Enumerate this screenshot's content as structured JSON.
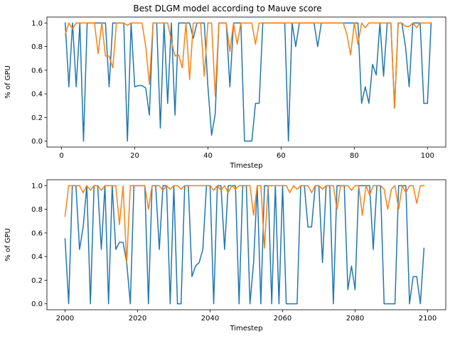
{
  "figure": {
    "title": "Best DLGM model according to Mauve score"
  },
  "chart_data": [
    {
      "type": "line",
      "title": "",
      "xlabel": "Timestep",
      "ylabel": "% of GPU",
      "xlim": [
        -4,
        105
      ],
      "ylim": [
        -0.05,
        1.05
      ],
      "xticks": [
        0,
        20,
        40,
        60,
        80,
        100
      ],
      "yticks": [
        0.0,
        0.2,
        0.4,
        0.6,
        0.8,
        1.0
      ],
      "x_start": 1,
      "grid": false,
      "legend": "none",
      "series": [
        {
          "color": "#1f77b4",
          "values": [
            1.0,
            0.46,
            1.0,
            0.46,
            1.0,
            0.0,
            1.0,
            1.0,
            1.0,
            1.0,
            1.0,
            1.0,
            0.46,
            1.0,
            1.0,
            1.0,
            1.0,
            0.0,
            1.0,
            0.46,
            0.47,
            0.47,
            0.45,
            0.22,
            1.0,
            1.0,
            0.11,
            1.0,
            0.32,
            1.0,
            0.22,
            1.0,
            1.0,
            1.0,
            1.0,
            0.87,
            1.0,
            1.0,
            1.0,
            0.46,
            0.05,
            0.23,
            1.0,
            1.0,
            1.0,
            0.46,
            1.0,
            1.0,
            1.0,
            0.0,
            0.0,
            0.0,
            0.32,
            0.32,
            1.0,
            1.0,
            1.0,
            1.0,
            1.0,
            1.0,
            1.0,
            0.0,
            1.0,
            0.8,
            1.0,
            1.0,
            1.0,
            1.0,
            1.0,
            0.8,
            1.0,
            1.0,
            1.0,
            1.0,
            1.0,
            1.0,
            1.0,
            1.0,
            1.0,
            1.0,
            1.0,
            0.32,
            0.46,
            0.32,
            0.65,
            0.56,
            1.0,
            0.55,
            1.0,
            1.0,
            0.28,
            1.0,
            1.0,
            0.8,
            0.46,
            1.0,
            1.0,
            1.0,
            0.32,
            0.32,
            1.0
          ]
        },
        {
          "color": "#ff7f0e",
          "values": [
            0.9,
            1.0,
            0.95,
            1.0,
            1.0,
            1.0,
            1.0,
            1.0,
            1.0,
            0.74,
            1.0,
            0.72,
            0.72,
            0.62,
            1.0,
            1.0,
            1.0,
            0.98,
            1.0,
            1.0,
            1.0,
            1.0,
            0.8,
            0.48,
            1.0,
            1.0,
            1.0,
            1.0,
            1.0,
            0.85,
            0.72,
            0.73,
            0.62,
            1.0,
            0.52,
            1.0,
            1.0,
            1.0,
            0.55,
            1.0,
            1.0,
            0.38,
            1.0,
            1.0,
            1.0,
            0.76,
            1.0,
            0.82,
            1.0,
            1.0,
            1.0,
            1.0,
            0.82,
            1.0,
            1.0,
            1.0,
            1.0,
            1.0,
            1.0,
            1.0,
            1.0,
            1.0,
            1.0,
            1.0,
            1.0,
            1.0,
            1.0,
            1.0,
            1.0,
            1.0,
            1.0,
            1.0,
            1.0,
            1.0,
            1.0,
            1.0,
            1.0,
            0.9,
            0.73,
            1.0,
            0.82,
            1.0,
            0.96,
            1.0,
            1.0,
            1.0,
            1.0,
            1.0,
            1.0,
            1.0,
            0.28,
            1.0,
            1.0,
            0.97,
            0.97,
            1.0,
            0.96,
            1.0,
            1.0,
            1.0,
            1.0
          ]
        }
      ]
    },
    {
      "type": "line",
      "title": "",
      "xlabel": "Timestep",
      "ylabel": "% of GPU",
      "xlim": [
        1995,
        2105
      ],
      "ylim": [
        -0.05,
        1.05
      ],
      "xticks": [
        2000,
        2020,
        2040,
        2060,
        2080,
        2100
      ],
      "yticks": [
        0.0,
        0.2,
        0.4,
        0.6,
        0.8,
        1.0
      ],
      "x_start": 2000,
      "grid": false,
      "legend": "none",
      "series": [
        {
          "color": "#1f77b4",
          "values": [
            0.55,
            0.0,
            1.0,
            1.0,
            0.46,
            0.65,
            1.0,
            0.0,
            1.0,
            1.0,
            0.46,
            1.0,
            0.0,
            1.0,
            0.46,
            0.52,
            0.52,
            0.35,
            0.0,
            1.0,
            1.0,
            1.0,
            1.0,
            0.0,
            1.0,
            1.0,
            0.46,
            1.0,
            1.0,
            0.0,
            1.0,
            0.0,
            0.0,
            1.0,
            1.0,
            0.23,
            0.32,
            0.35,
            0.46,
            1.0,
            1.0,
            0.0,
            1.0,
            1.0,
            0.46,
            1.0,
            1.0,
            1.0,
            0.0,
            1.0,
            1.0,
            0.0,
            0.35,
            1.0,
            0.0,
            1.0,
            1.0,
            0.0,
            1.0,
            0.0,
            1.0,
            0.0,
            0.0,
            0.0,
            0.0,
            1.0,
            1.0,
            0.65,
            0.65,
            1.0,
            1.0,
            0.35,
            1.0,
            1.0,
            0.0,
            1.0,
            1.0,
            1.0,
            0.12,
            0.32,
            0.12,
            1.0,
            1.0,
            1.0,
            1.0,
            0.46,
            1.0,
            1.0,
            0.0,
            0.0,
            0.0,
            0.0,
            1.0,
            1.0,
            1.0,
            0.0,
            0.23,
            0.23,
            0.0,
            0.47
          ]
        },
        {
          "color": "#ff7f0e",
          "values": [
            0.74,
            1.0,
            1.0,
            1.0,
            1.0,
            0.94,
            1.0,
            0.96,
            1.0,
            1.0,
            0.96,
            1.0,
            1.0,
            1.0,
            1.0,
            0.67,
            1.0,
            0.35,
            1.0,
            1.0,
            1.0,
            1.0,
            1.0,
            0.8,
            1.0,
            1.0,
            1.0,
            0.96,
            1.0,
            0.97,
            1.0,
            1.0,
            0.97,
            1.0,
            1.0,
            1.0,
            1.0,
            1.0,
            1.0,
            1.0,
            1.0,
            0.96,
            1.0,
            0.96,
            1.0,
            0.94,
            1.0,
            0.97,
            1.0,
            1.0,
            1.0,
            1.0,
            0.75,
            1.0,
            1.0,
            0.47,
            1.0,
            1.0,
            1.0,
            1.0,
            1.0,
            1.0,
            0.94,
            1.0,
            0.97,
            1.0,
            1.0,
            1.0,
            0.94,
            1.0,
            1.0,
            0.97,
            1.0,
            1.0,
            1.0,
            0.8,
            1.0,
            1.0,
            1.0,
            0.96,
            1.0,
            1.0,
            0.75,
            1.0,
            0.92,
            1.0,
            1.0,
            1.0,
            0.97,
            0.8,
            0.97,
            1.0,
            0.8,
            1.0,
            0.94,
            1.0,
            1.0,
            0.85,
            1.0,
            1.0
          ]
        }
      ]
    }
  ]
}
